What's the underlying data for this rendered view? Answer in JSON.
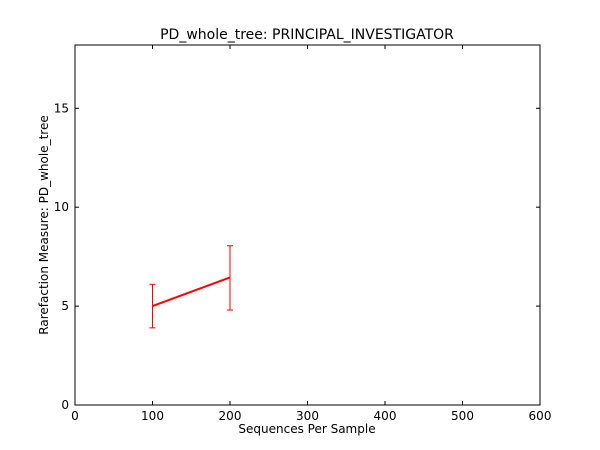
{
  "chart_data": {
    "type": "line",
    "title": "PD_whole_tree: PRINCIPAL_INVESTIGATOR",
    "xlabel": "Sequences Per Sample",
    "ylabel": "Rarefaction Measure: PD_whole_tree",
    "xlim": [
      0,
      600
    ],
    "ylim": [
      0,
      18.2
    ],
    "xticks": [
      0,
      100,
      200,
      300,
      400,
      500,
      600
    ],
    "xtick_labels": [
      "0",
      "100",
      "200",
      "300",
      "400",
      "500",
      "600"
    ],
    "yticks": [
      0,
      5,
      10,
      15
    ],
    "ytick_labels": [
      "0",
      "5",
      "10",
      "15"
    ],
    "grid": false,
    "series": [
      {
        "color": "#ff0000",
        "points": [
          {
            "x": 100,
            "y": 5.0,
            "err_low": 3.9,
            "err_high": 6.1
          },
          {
            "x": 200,
            "y": 6.45,
            "err_low": 4.8,
            "err_high": 8.05
          }
        ]
      }
    ]
  }
}
